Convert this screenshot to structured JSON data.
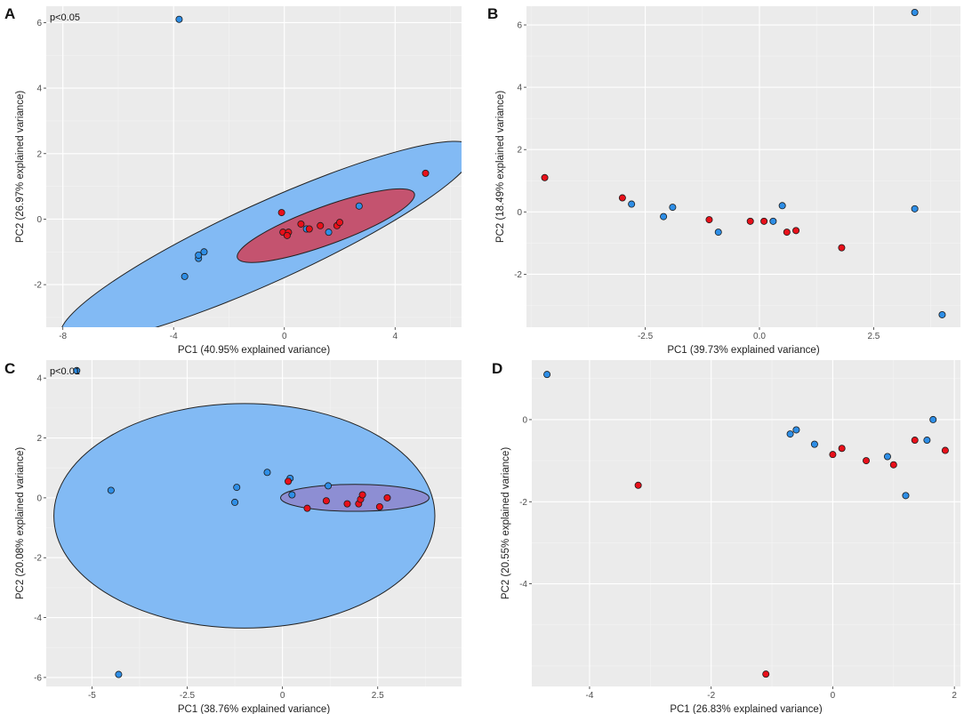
{
  "figure": {
    "colors": {
      "panel_bg": "#ebebeb",
      "grid_major": "#ffffff",
      "grid_minor": "#f4f4f4",
      "group_blue": "#2e8ee6",
      "group_red": "#e8101a",
      "ellipse_blue_fill": "#82baf4",
      "ellipse_red_fill": "#c4536f",
      "ellipse_purple_fill": "#8d8ed3",
      "outline": "#222222"
    }
  },
  "chart_data": [
    {
      "id": "A",
      "panel_label": "A",
      "type": "scatter",
      "annotation": "p<0.05",
      "xlabel": "PC1 (40.95% explained variance)",
      "ylabel": "PC2 (26.97% explained variance)",
      "xlim": [
        -8.6,
        6.4
      ],
      "ylim": [
        -3.3,
        6.5
      ],
      "xticks": [
        -8,
        -4,
        0,
        4
      ],
      "yticks": [
        -2,
        0,
        2,
        4,
        6
      ],
      "ellipses": [
        {
          "group": "blue",
          "cx": -0.6,
          "cy": -0.7,
          "rx": 8.2,
          "ry": 1.2,
          "angle": 24.5,
          "fill_key": "ellipse_blue_fill"
        },
        {
          "group": "red",
          "cx": 1.5,
          "cy": -0.2,
          "rx": 3.4,
          "ry": 0.58,
          "angle": 20,
          "fill_key": "ellipse_red_fill"
        }
      ],
      "series": [
        {
          "name": "blue",
          "color_key": "group_blue",
          "points": [
            [
              -3.8,
              6.1
            ],
            [
              2.7,
              0.4
            ],
            [
              -3.1,
              -1.2
            ],
            [
              -3.1,
              -1.1
            ],
            [
              -2.9,
              -1.0
            ],
            [
              -3.6,
              -1.75
            ],
            [
              0.8,
              -0.3
            ],
            [
              1.6,
              -0.4
            ]
          ]
        },
        {
          "name": "red",
          "color_key": "group_red",
          "points": [
            [
              5.1,
              1.4
            ],
            [
              -0.1,
              0.2
            ],
            [
              1.3,
              -0.2
            ],
            [
              1.9,
              -0.2
            ],
            [
              2.0,
              -0.1
            ],
            [
              0.6,
              -0.15
            ],
            [
              0.9,
              -0.3
            ],
            [
              -0.05,
              -0.4
            ],
            [
              0.15,
              -0.4
            ],
            [
              0.1,
              -0.5
            ]
          ]
        }
      ]
    },
    {
      "id": "B",
      "panel_label": "B",
      "type": "scatter",
      "annotation": "",
      "xlabel": "PC1 (39.73% explained variance)",
      "ylabel": "PC2 (18.49% explained variance)",
      "xlim": [
        -5.1,
        4.4
      ],
      "ylim": [
        -3.7,
        6.6
      ],
      "xticks": [
        -2.5,
        0,
        2.5
      ],
      "yticks": [
        -2,
        0,
        2,
        4,
        6
      ],
      "xtick_labels": [
        "-2.5",
        "0.0",
        "2.5"
      ],
      "ellipses": [],
      "series": [
        {
          "name": "blue",
          "color_key": "group_blue",
          "points": [
            [
              3.4,
              6.4
            ],
            [
              3.4,
              0.1
            ],
            [
              4.0,
              -3.3
            ],
            [
              -2.8,
              0.25
            ],
            [
              -1.9,
              0.15
            ],
            [
              -2.1,
              -0.15
            ],
            [
              0.3,
              -0.3
            ],
            [
              0.5,
              0.2
            ],
            [
              -0.9,
              -0.65
            ]
          ]
        },
        {
          "name": "red",
          "color_key": "group_red",
          "points": [
            [
              -4.7,
              1.1
            ],
            [
              -3.0,
              0.45
            ],
            [
              -1.1,
              -0.25
            ],
            [
              -0.2,
              -0.3
            ],
            [
              0.1,
              -0.3
            ],
            [
              0.6,
              -0.65
            ],
            [
              0.8,
              -0.6
            ],
            [
              1.8,
              -1.15
            ]
          ]
        }
      ]
    },
    {
      "id": "C",
      "panel_label": "C",
      "type": "scatter",
      "annotation": "p<0.01",
      "xlabel": "PC1 (38.76% explained variance)",
      "ylabel": "PC2 (20.08% explained variance)",
      "xlim": [
        -6.2,
        4.7
      ],
      "ylim": [
        -6.3,
        4.6
      ],
      "xticks": [
        -5,
        -2.5,
        0,
        2.5
      ],
      "yticks": [
        -6,
        -4,
        -2,
        0,
        2,
        4
      ],
      "xtick_labels": [
        "-5",
        "-2.5",
        "0",
        "2.5"
      ],
      "ellipses": [
        {
          "group": "blue",
          "cx": -1.0,
          "cy": -0.6,
          "rx": 5.0,
          "ry": 3.75,
          "angle": 0,
          "fill_key": "ellipse_blue_fill"
        },
        {
          "group": "red",
          "cx": 1.9,
          "cy": 0.0,
          "rx": 1.95,
          "ry": 0.45,
          "angle": 0,
          "fill_key": "ellipse_purple_fill"
        }
      ],
      "series": [
        {
          "name": "blue",
          "color_key": "group_blue",
          "points": [
            [
              -5.4,
              4.25
            ],
            [
              -4.5,
              0.25
            ],
            [
              -4.3,
              -5.9
            ],
            [
              -1.2,
              0.35
            ],
            [
              -1.25,
              -0.15
            ],
            [
              -0.4,
              0.85
            ],
            [
              0.2,
              0.65
            ],
            [
              0.25,
              0.1
            ],
            [
              1.2,
              0.4
            ]
          ]
        },
        {
          "name": "red",
          "color_key": "group_red",
          "points": [
            [
              0.15,
              0.55
            ],
            [
              0.65,
              -0.35
            ],
            [
              1.15,
              -0.1
            ],
            [
              1.7,
              -0.2
            ],
            [
              2.0,
              -0.2
            ],
            [
              2.05,
              -0.05
            ],
            [
              2.1,
              0.1
            ],
            [
              2.55,
              -0.3
            ],
            [
              2.75,
              0.0
            ]
          ]
        }
      ]
    },
    {
      "id": "D",
      "panel_label": "D",
      "type": "scatter",
      "annotation": "",
      "xlabel": "PC1 (26.83% explained variance)",
      "ylabel": "PC2 (20.55% explained variance)",
      "xlim": [
        -4.95,
        2.1
      ],
      "ylim": [
        -6.5,
        1.45
      ],
      "xticks": [
        -4,
        -2,
        0,
        2
      ],
      "yticks": [
        -4,
        -2,
        0
      ],
      "ellipses": [],
      "series": [
        {
          "name": "blue",
          "color_key": "group_blue",
          "points": [
            [
              -4.7,
              1.1
            ],
            [
              -0.7,
              -0.35
            ],
            [
              -0.6,
              -0.25
            ],
            [
              -0.3,
              -0.6
            ],
            [
              0.9,
              -0.9
            ],
            [
              1.2,
              -1.85
            ],
            [
              1.55,
              -0.5
            ],
            [
              1.65,
              0.0
            ]
          ]
        },
        {
          "name": "red",
          "color_key": "group_red",
          "points": [
            [
              -3.2,
              -1.6
            ],
            [
              -1.1,
              -6.2
            ],
            [
              0.0,
              -0.85
            ],
            [
              0.15,
              -0.7
            ],
            [
              0.55,
              -1.0
            ],
            [
              1.0,
              -1.1
            ],
            [
              1.35,
              -0.5
            ],
            [
              1.85,
              -0.75
            ]
          ]
        }
      ]
    }
  ]
}
